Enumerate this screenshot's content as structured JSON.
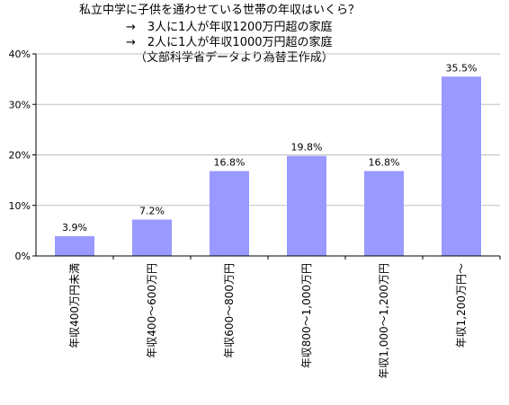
{
  "chart_data": {
    "type": "bar",
    "title": "私立中学に子供を通わせている世帯の年収はいくら？",
    "subtitle_lines": [
      "→　3人に1人が年収1200万円超の家庭",
      "→　2人に1人が年収1000万円超の家庭",
      "（文部科学省データより為替王作成）"
    ],
    "categories": [
      "年収400万円未満",
      "年収400～600万円",
      "年収600～800万円",
      "年収800～1,000万円",
      "年収1,000～1,200万円",
      "年収1,200万円～"
    ],
    "values": [
      3.9,
      7.2,
      16.8,
      19.8,
      16.8,
      35.5
    ],
    "data_labels": [
      "3.9%",
      "7.2%",
      "16.8%",
      "19.8%",
      "16.8%",
      "35.5%"
    ],
    "y_ticks": [
      "0%",
      "10%",
      "20%",
      "30%",
      "40%"
    ],
    "ylim": [
      0,
      40
    ],
    "xlabel": "",
    "ylabel": "",
    "grid": true,
    "legend": "none",
    "bar_color": "#9999FF",
    "grid_color": "#BFBFBF"
  }
}
